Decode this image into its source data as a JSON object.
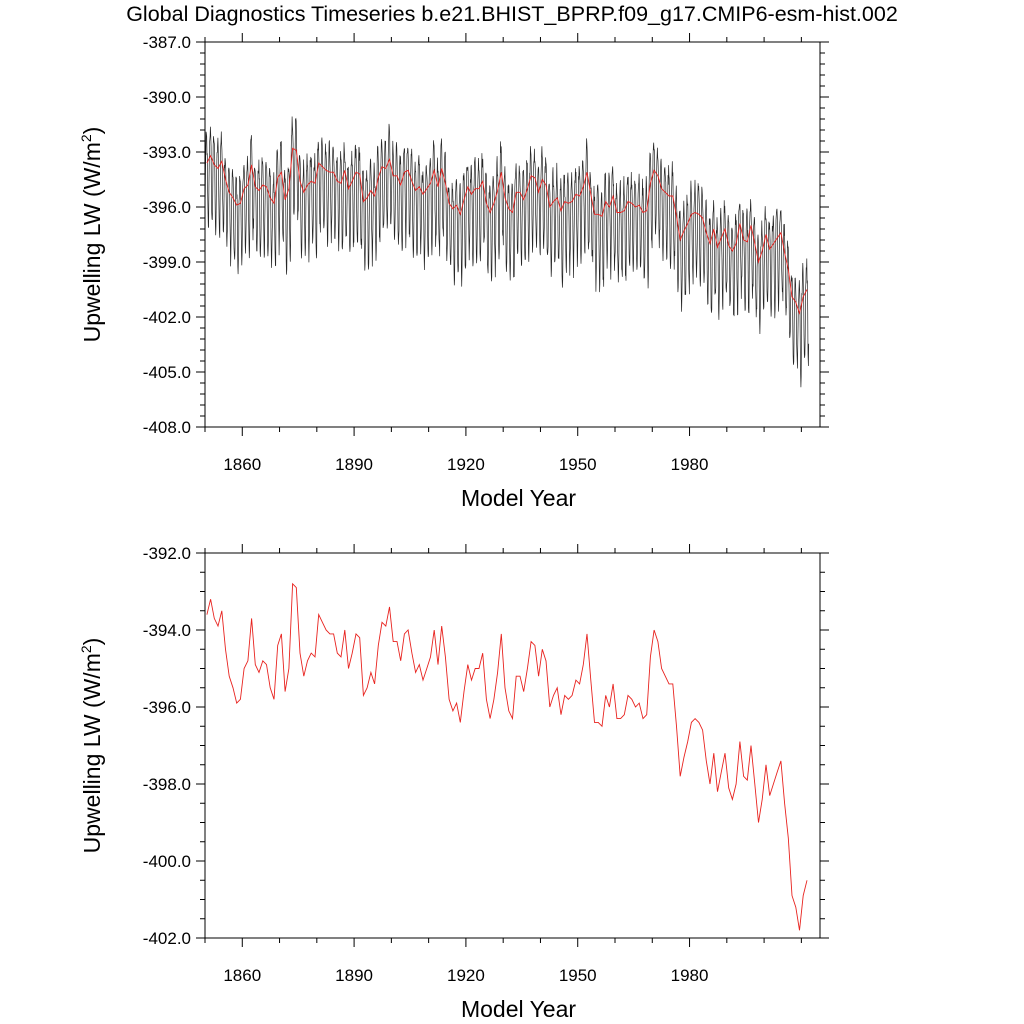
{
  "title": "Global Diagnostics Timeseries b.e21.BHIST_BPRP.f09_g17.CMIP6-esm-hist.002",
  "colors": {
    "monthly": "#000000",
    "annual": "#e8231f",
    "axis": "#000000"
  },
  "chart_data": [
    {
      "type": "line",
      "xlabel": "Model Year",
      "ylabel": "Upwelling LW (W/m",
      "ylabel_sup": "2",
      "ylabel_end": ")",
      "xlim": [
        1850,
        2015
      ],
      "ylim": [
        -408.0,
        -387.0
      ],
      "xticks": [
        1860,
        1890,
        1920,
        1950,
        1980
      ],
      "xtick_labels": [
        "1860",
        "1890",
        "1920",
        "1950",
        "1980"
      ],
      "yticks": [
        -408.0,
        -405.0,
        -402.0,
        -399.0,
        -396.0,
        -393.0,
        -390.0,
        -387.0
      ],
      "ytick_labels": [
        "-408.0",
        "-405.0",
        "-402.0",
        "-399.0",
        "-396.0",
        "-393.0",
        "-390.0",
        "-387.0"
      ],
      "series": [
        {
          "kind": "monthly",
          "description_of_seasonal_cycle_amplitude_Wm2": 6.0
        },
        {
          "kind": "annual"
        }
      ]
    },
    {
      "type": "line",
      "xlabel": "Model Year",
      "ylabel": "Upwelling LW (W/m",
      "ylabel_sup": "2",
      "ylabel_end": ")",
      "xlim": [
        1850,
        2015
      ],
      "ylim": [
        -402.0,
        -392.0
      ],
      "xticks": [
        1860,
        1890,
        1920,
        1950,
        1980
      ],
      "xtick_labels": [
        "1860",
        "1890",
        "1920",
        "1950",
        "1980"
      ],
      "yticks": [
        -402.0,
        -400.0,
        -398.0,
        -396.0,
        -394.0,
        -392.0
      ],
      "ytick_labels": [
        "-402.0",
        "-400.0",
        "-398.0",
        "-396.0",
        "-394.0",
        "-392.0"
      ],
      "series": [
        {
          "kind": "annual"
        }
      ]
    }
  ],
  "annual_x_start": 1850,
  "annual_values": [
    -393.6,
    -393.2,
    -393.7,
    -393.9,
    -393.5,
    -394.5,
    -395.2,
    -395.5,
    -395.9,
    -395.8,
    -395.0,
    -394.8,
    -393.7,
    -394.9,
    -395.1,
    -394.8,
    -394.9,
    -395.5,
    -395.8,
    -394.4,
    -394.1,
    -395.6,
    -395.0,
    -392.8,
    -392.9,
    -394.6,
    -395.2,
    -394.8,
    -394.6,
    -394.7,
    -393.6,
    -393.8,
    -394.0,
    -394.1,
    -394.1,
    -394.6,
    -394.7,
    -394.0,
    -395.0,
    -394.6,
    -394.1,
    -394.2,
    -395.7,
    -395.5,
    -395.1,
    -395.4,
    -394.4,
    -393.8,
    -393.9,
    -393.4,
    -394.3,
    -394.3,
    -394.8,
    -394.1,
    -394.0,
    -394.6,
    -395.1,
    -394.9,
    -395.3,
    -395.0,
    -394.7,
    -394.0,
    -394.9,
    -393.9,
    -394.7,
    -395.8,
    -396.1,
    -395.9,
    -396.4,
    -395.6,
    -394.9,
    -395.3,
    -395.0,
    -395.0,
    -394.6,
    -395.8,
    -396.3,
    -395.8,
    -395.1,
    -394.1,
    -395.5,
    -396.1,
    -396.3,
    -395.2,
    -395.2,
    -395.6,
    -395.0,
    -394.3,
    -394.4,
    -395.2,
    -394.5,
    -394.8,
    -396.0,
    -395.7,
    -395.5,
    -396.2,
    -395.7,
    -395.8,
    -395.7,
    -395.3,
    -395.4,
    -394.9,
    -394.1,
    -395.3,
    -396.4,
    -396.4,
    -396.5,
    -395.7,
    -396.0,
    -395.4,
    -396.3,
    -396.3,
    -396.2,
    -395.7,
    -395.8,
    -396.0,
    -395.9,
    -396.3,
    -396.2,
    -394.7,
    -394.0,
    -394.3,
    -395.0,
    -395.2,
    -395.4,
    -395.4,
    -396.5,
    -397.8,
    -397.3,
    -396.9,
    -396.4,
    -396.3,
    -396.4,
    -396.6,
    -397.4,
    -398.0,
    -397.2,
    -398.2,
    -397.7,
    -397.2,
    -398.1,
    -398.4,
    -398.0,
    -396.9,
    -397.8,
    -397.9,
    -397.0,
    -398.0,
    -399.0,
    -398.4,
    -397.5,
    -398.3,
    -398.0,
    -397.7,
    -397.4,
    -398.5,
    -399.4,
    -400.9,
    -401.2,
    -401.8,
    -400.9,
    -400.5
  ]
}
